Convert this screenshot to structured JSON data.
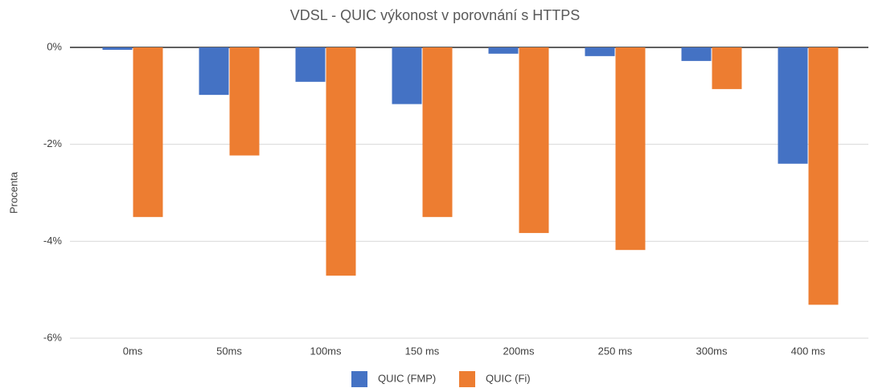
{
  "chart_data": {
    "type": "bar",
    "title": "VDSL - QUIC výkonost v porovnání s HTTPS",
    "y_label": "Procenta",
    "categories": [
      "0ms",
      "50ms",
      "100ms",
      "150 ms",
      "200ms",
      "250 ms",
      "300ms",
      "400 ms"
    ],
    "series": [
      {
        "name": "QUIC (FMP)",
        "color": "#4472c4",
        "values": [
          -0.05,
          -0.98,
          -0.71,
          -1.17,
          -0.13,
          -0.18,
          -0.28,
          -2.4
        ]
      },
      {
        "name": "QUIC (Fi)",
        "color": "#ed7d31",
        "values": [
          -3.5,
          -2.23,
          -4.71,
          -3.5,
          -3.83,
          -4.18,
          -0.86,
          -5.31
        ]
      }
    ],
    "ylim": [
      -6,
      0
    ],
    "yticks": [
      {
        "value": -6,
        "label": "-6%"
      },
      {
        "value": -4,
        "label": "-4%"
      },
      {
        "value": -2,
        "label": "-2%"
      },
      {
        "value": 0,
        "label": "0%"
      }
    ],
    "grid": true,
    "legend": "bottom"
  }
}
